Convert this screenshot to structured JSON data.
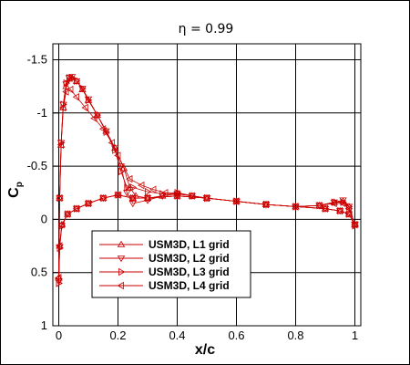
{
  "chart_data": {
    "type": "line",
    "title": "η = 0.99",
    "xlabel": "x/c",
    "ylabel_main": "C",
    "ylabel_sub": "p",
    "xlim": [
      -0.02,
      1.02
    ],
    "ylim": [
      1.0,
      -1.65
    ],
    "x_ticks": [
      0,
      0.2,
      0.4,
      0.6,
      0.8,
      1
    ],
    "x_tick_labels": [
      "0",
      "0.2",
      "0.4",
      "0.6",
      "0.8",
      "1"
    ],
    "y_ticks": [
      -1.5,
      -1,
      -0.5,
      0,
      0.5,
      1
    ],
    "y_tick_labels": [
      "-1.5",
      "-1",
      "-0.5",
      "0",
      "0.5",
      "1"
    ],
    "grid": true,
    "legend_position": "lower-left",
    "series_color": "#cc0000",
    "series": [
      {
        "name": "USM3D, L1 grid",
        "marker": "triangle-up",
        "upper": [
          [
            0.0,
            0.55
          ],
          [
            0.003,
            -0.2
          ],
          [
            0.008,
            -0.7
          ],
          [
            0.015,
            -1.05
          ],
          [
            0.025,
            -1.25
          ],
          [
            0.035,
            -1.32
          ],
          [
            0.045,
            -1.33
          ],
          [
            0.06,
            -1.3
          ],
          [
            0.08,
            -1.22
          ],
          [
            0.1,
            -1.12
          ],
          [
            0.13,
            -0.98
          ],
          [
            0.16,
            -0.83
          ],
          [
            0.19,
            -0.67
          ],
          [
            0.22,
            -0.48
          ],
          [
            0.24,
            -0.3
          ],
          [
            0.26,
            -0.22
          ],
          [
            0.3,
            -0.2
          ],
          [
            0.35,
            -0.22
          ],
          [
            0.4,
            -0.25
          ],
          [
            0.45,
            -0.22
          ],
          [
            0.5,
            -0.2
          ],
          [
            0.6,
            -0.17
          ],
          [
            0.7,
            -0.14
          ],
          [
            0.8,
            -0.12
          ],
          [
            0.88,
            -0.13
          ],
          [
            0.93,
            -0.16
          ],
          [
            0.96,
            -0.17
          ],
          [
            0.98,
            -0.12
          ],
          [
            1.0,
            0.05
          ]
        ],
        "lower": [
          [
            0.0,
            0.55
          ],
          [
            0.003,
            0.25
          ],
          [
            0.01,
            0.05
          ],
          [
            0.03,
            -0.05
          ],
          [
            0.06,
            -0.1
          ],
          [
            0.1,
            -0.15
          ],
          [
            0.15,
            -0.2
          ],
          [
            0.2,
            -0.23
          ],
          [
            0.25,
            -0.2
          ],
          [
            0.3,
            -0.2
          ],
          [
            0.4,
            -0.22
          ],
          [
            0.5,
            -0.2
          ],
          [
            0.6,
            -0.17
          ],
          [
            0.7,
            -0.14
          ],
          [
            0.8,
            -0.12
          ],
          [
            0.9,
            -0.1
          ],
          [
            0.95,
            -0.08
          ],
          [
            0.98,
            -0.05
          ],
          [
            1.0,
            0.05
          ]
        ]
      },
      {
        "name": "USM3D, L2 grid",
        "marker": "triangle-down",
        "upper": [
          [
            0.0,
            0.58
          ],
          [
            0.003,
            -0.2
          ],
          [
            0.008,
            -0.72
          ],
          [
            0.015,
            -1.08
          ],
          [
            0.025,
            -1.27
          ],
          [
            0.035,
            -1.33
          ],
          [
            0.045,
            -1.34
          ],
          [
            0.06,
            -1.3
          ],
          [
            0.08,
            -1.23
          ],
          [
            0.1,
            -1.13
          ],
          [
            0.13,
            -0.98
          ],
          [
            0.16,
            -0.83
          ],
          [
            0.19,
            -0.67
          ],
          [
            0.21,
            -0.5
          ],
          [
            0.23,
            -0.25
          ],
          [
            0.25,
            -0.15
          ],
          [
            0.3,
            -0.18
          ],
          [
            0.35,
            -0.22
          ],
          [
            0.4,
            -0.24
          ],
          [
            0.45,
            -0.22
          ],
          [
            0.5,
            -0.2
          ],
          [
            0.6,
            -0.17
          ],
          [
            0.7,
            -0.14
          ],
          [
            0.8,
            -0.12
          ],
          [
            0.88,
            -0.13
          ],
          [
            0.93,
            -0.16
          ],
          [
            0.96,
            -0.18
          ],
          [
            0.98,
            -0.12
          ],
          [
            1.0,
            0.05
          ]
        ],
        "lower": [
          [
            0.0,
            0.58
          ],
          [
            0.003,
            0.26
          ],
          [
            0.01,
            0.06
          ],
          [
            0.03,
            -0.05
          ],
          [
            0.06,
            -0.1
          ],
          [
            0.1,
            -0.15
          ],
          [
            0.15,
            -0.2
          ],
          [
            0.2,
            -0.23
          ],
          [
            0.25,
            -0.2
          ],
          [
            0.3,
            -0.2
          ],
          [
            0.4,
            -0.22
          ],
          [
            0.5,
            -0.2
          ],
          [
            0.6,
            -0.17
          ],
          [
            0.7,
            -0.14
          ],
          [
            0.8,
            -0.12
          ],
          [
            0.9,
            -0.1
          ],
          [
            0.95,
            -0.08
          ],
          [
            0.98,
            -0.05
          ],
          [
            1.0,
            0.05
          ]
        ]
      },
      {
        "name": "USM3D, L3 grid",
        "marker": "triangle-right",
        "upper": [
          [
            0.0,
            0.6
          ],
          [
            0.003,
            -0.2
          ],
          [
            0.008,
            -0.72
          ],
          [
            0.015,
            -1.08
          ],
          [
            0.025,
            -1.28
          ],
          [
            0.035,
            -1.33
          ],
          [
            0.045,
            -1.33
          ],
          [
            0.06,
            -1.3
          ],
          [
            0.08,
            -1.23
          ],
          [
            0.1,
            -1.12
          ],
          [
            0.13,
            -0.98
          ],
          [
            0.16,
            -0.82
          ],
          [
            0.19,
            -0.65
          ],
          [
            0.21,
            -0.45
          ],
          [
            0.23,
            -0.3
          ],
          [
            0.25,
            -0.3
          ],
          [
            0.3,
            -0.26
          ],
          [
            0.35,
            -0.24
          ],
          [
            0.4,
            -0.25
          ],
          [
            0.45,
            -0.22
          ],
          [
            0.5,
            -0.2
          ],
          [
            0.6,
            -0.17
          ],
          [
            0.7,
            -0.14
          ],
          [
            0.8,
            -0.12
          ],
          [
            0.88,
            -0.13
          ],
          [
            0.93,
            -0.16
          ],
          [
            0.96,
            -0.16
          ],
          [
            0.98,
            -0.12
          ],
          [
            1.0,
            0.05
          ]
        ],
        "lower": [
          [
            0.0,
            0.6
          ],
          [
            0.003,
            0.27
          ],
          [
            0.01,
            0.06
          ],
          [
            0.03,
            -0.05
          ],
          [
            0.06,
            -0.1
          ],
          [
            0.1,
            -0.15
          ],
          [
            0.15,
            -0.2
          ],
          [
            0.2,
            -0.23
          ],
          [
            0.25,
            -0.2
          ],
          [
            0.3,
            -0.2
          ],
          [
            0.4,
            -0.22
          ],
          [
            0.5,
            -0.2
          ],
          [
            0.6,
            -0.17
          ],
          [
            0.7,
            -0.14
          ],
          [
            0.8,
            -0.12
          ],
          [
            0.9,
            -0.1
          ],
          [
            0.95,
            -0.08
          ],
          [
            0.98,
            -0.05
          ],
          [
            1.0,
            0.06
          ]
        ]
      },
      {
        "name": "USM3D, L4 grid",
        "marker": "triangle-left",
        "upper": [
          [
            0.0,
            0.55
          ],
          [
            0.003,
            -0.2
          ],
          [
            0.008,
            -0.7
          ],
          [
            0.015,
            -1.05
          ],
          [
            0.025,
            -1.2
          ],
          [
            0.04,
            -1.22
          ],
          [
            0.06,
            -1.15
          ],
          [
            0.09,
            -1.05
          ],
          [
            0.12,
            -0.95
          ],
          [
            0.15,
            -0.85
          ],
          [
            0.18,
            -0.72
          ],
          [
            0.2,
            -0.6
          ],
          [
            0.24,
            -0.38
          ],
          [
            0.28,
            -0.32
          ],
          [
            0.32,
            -0.28
          ],
          [
            0.36,
            -0.25
          ],
          [
            0.4,
            -0.24
          ],
          [
            0.45,
            -0.22
          ],
          [
            0.5,
            -0.2
          ],
          [
            0.6,
            -0.17
          ],
          [
            0.7,
            -0.14
          ],
          [
            0.8,
            -0.12
          ],
          [
            0.88,
            -0.13
          ],
          [
            0.93,
            -0.15
          ],
          [
            0.96,
            -0.15
          ],
          [
            0.98,
            -0.1
          ],
          [
            1.0,
            0.05
          ]
        ],
        "lower": [
          [
            0.0,
            0.55
          ],
          [
            0.003,
            0.25
          ],
          [
            0.01,
            0.05
          ],
          [
            0.03,
            -0.05
          ],
          [
            0.06,
            -0.1
          ],
          [
            0.1,
            -0.15
          ],
          [
            0.15,
            -0.2
          ],
          [
            0.2,
            -0.23
          ],
          [
            0.25,
            -0.2
          ],
          [
            0.3,
            -0.2
          ],
          [
            0.4,
            -0.22
          ],
          [
            0.5,
            -0.2
          ],
          [
            0.6,
            -0.17
          ],
          [
            0.7,
            -0.14
          ],
          [
            0.8,
            -0.12
          ],
          [
            0.9,
            -0.1
          ],
          [
            0.95,
            -0.08
          ],
          [
            0.98,
            -0.05
          ],
          [
            1.0,
            0.05
          ]
        ]
      }
    ]
  }
}
